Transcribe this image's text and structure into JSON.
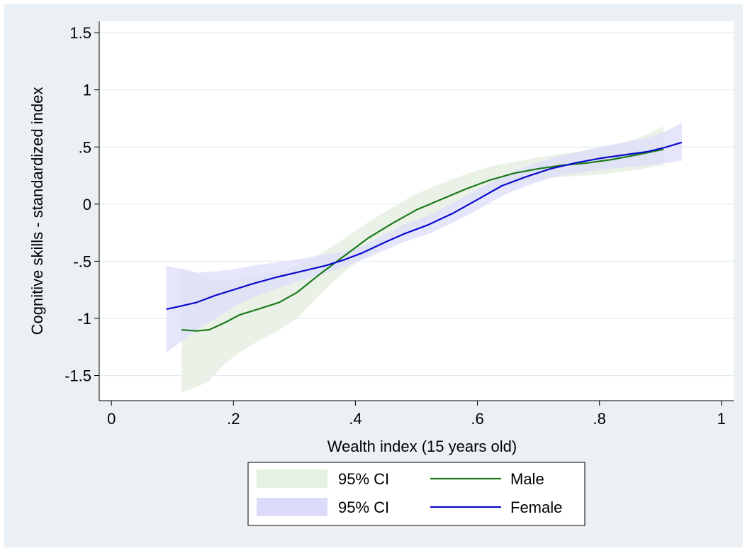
{
  "chart_data": {
    "type": "line",
    "title": "",
    "xlabel": "Wealth index (15 years old)",
    "ylabel": "Cognitive skills - standardized index",
    "xlim": [
      -0.02,
      1.02
    ],
    "ylim": [
      -1.72,
      1.6
    ],
    "x_ticks": [
      0,
      0.2,
      0.4,
      0.6,
      0.8,
      1
    ],
    "x_tick_labels": [
      "0",
      ".2",
      ".4",
      ".6",
      ".8",
      "1"
    ],
    "y_ticks": [
      -1.5,
      -1,
      -0.5,
      0,
      0.5,
      1,
      1.5
    ],
    "y_tick_labels": [
      "-1.5",
      "-1",
      "-.5",
      "0",
      ".5",
      "1",
      "1.5"
    ],
    "grid": "horizontal",
    "legend_position": "bottom",
    "legend": [
      {
        "label": "95% CI",
        "kind": "band",
        "color": "#e6f0e3"
      },
      {
        "label": "Male",
        "kind": "line",
        "color": "#1a7a1a"
      },
      {
        "label": "95% CI",
        "kind": "band",
        "color": "#dcdcfa"
      },
      {
        "label": "Female",
        "kind": "line",
        "color": "#0a0acc"
      }
    ],
    "series": [
      {
        "name": "Male",
        "color": "#1a7a1a",
        "band_color": "#e6f0e3",
        "x": [
          0.115,
          0.14,
          0.16,
          0.185,
          0.21,
          0.24,
          0.275,
          0.305,
          0.34,
          0.38,
          0.42,
          0.46,
          0.5,
          0.54,
          0.58,
          0.62,
          0.66,
          0.7,
          0.74,
          0.78,
          0.82,
          0.86,
          0.905
        ],
        "y": [
          -1.1,
          -1.11,
          -1.1,
          -1.04,
          -0.97,
          -0.92,
          -0.86,
          -0.77,
          -0.62,
          -0.46,
          -0.3,
          -0.17,
          -0.05,
          0.04,
          0.13,
          0.21,
          0.27,
          0.31,
          0.34,
          0.36,
          0.39,
          0.43,
          0.48
        ],
        "lower": [
          -1.65,
          -1.6,
          -1.55,
          -1.4,
          -1.3,
          -1.2,
          -1.1,
          -1.0,
          -0.8,
          -0.6,
          -0.44,
          -0.31,
          -0.19,
          -0.09,
          0.01,
          0.1,
          0.17,
          0.22,
          0.24,
          0.25,
          0.27,
          0.3,
          0.34
        ],
        "upper": [
          -0.56,
          -0.6,
          -0.65,
          -0.68,
          -0.65,
          -0.62,
          -0.6,
          -0.54,
          -0.44,
          -0.31,
          -0.16,
          -0.03,
          0.09,
          0.18,
          0.26,
          0.33,
          0.37,
          0.41,
          0.44,
          0.47,
          0.51,
          0.57,
          0.68
        ]
      },
      {
        "name": "Female",
        "color": "#0a0acc",
        "band_color": "#dcdcfa",
        "x": [
          0.09,
          0.115,
          0.14,
          0.17,
          0.2,
          0.23,
          0.27,
          0.31,
          0.35,
          0.38,
          0.41,
          0.45,
          0.48,
          0.52,
          0.56,
          0.6,
          0.64,
          0.68,
          0.72,
          0.76,
          0.8,
          0.84,
          0.88,
          0.91,
          0.935
        ],
        "y": [
          -0.92,
          -0.89,
          -0.86,
          -0.8,
          -0.75,
          -0.7,
          -0.64,
          -0.59,
          -0.54,
          -0.49,
          -0.43,
          -0.33,
          -0.26,
          -0.18,
          -0.08,
          0.04,
          0.16,
          0.24,
          0.31,
          0.36,
          0.4,
          0.43,
          0.46,
          0.5,
          0.54
        ],
        "lower": [
          -1.3,
          -1.2,
          -1.1,
          -1.0,
          -0.9,
          -0.82,
          -0.74,
          -0.67,
          -0.61,
          -0.55,
          -0.49,
          -0.4,
          -0.33,
          -0.26,
          -0.16,
          -0.05,
          0.07,
          0.16,
          0.23,
          0.27,
          0.3,
          0.32,
          0.34,
          0.36,
          0.38
        ],
        "upper": [
          -0.54,
          -0.57,
          -0.6,
          -0.59,
          -0.57,
          -0.54,
          -0.51,
          -0.48,
          -0.44,
          -0.42,
          -0.37,
          -0.26,
          -0.18,
          -0.1,
          0.01,
          0.13,
          0.24,
          0.33,
          0.4,
          0.45,
          0.5,
          0.54,
          0.58,
          0.64,
          0.71
        ]
      }
    ]
  }
}
